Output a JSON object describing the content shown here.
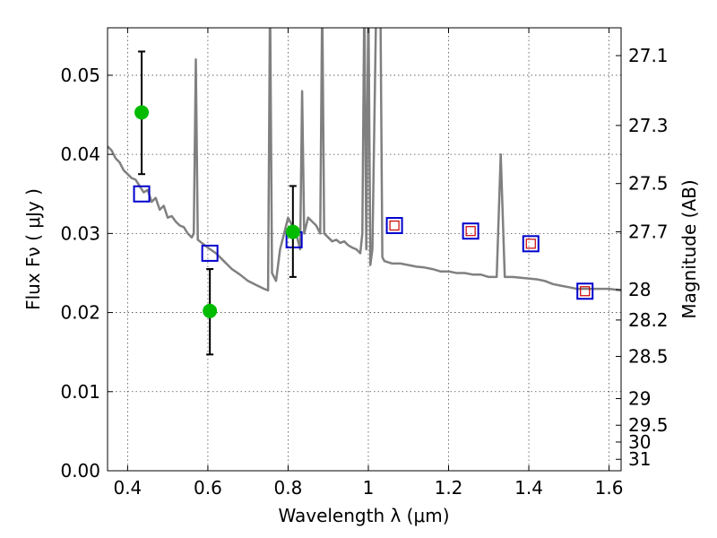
{
  "chart_data": {
    "type": "line",
    "xlabel": "Wavelength  λ (μm)",
    "ylabel": "Flux  Fν  ( μJy )",
    "ylabel_right": "Magnitude (AB)",
    "xlim": [
      0.35,
      1.63
    ],
    "ylim": [
      0.0,
      0.056
    ],
    "grid": true,
    "x_ticks": [
      {
        "value": 0.4,
        "label": "0.4"
      },
      {
        "value": 0.6,
        "label": "0.6"
      },
      {
        "value": 0.8,
        "label": "0.8"
      },
      {
        "value": 1.0,
        "label": "1"
      },
      {
        "value": 1.2,
        "label": "1.2"
      },
      {
        "value": 1.4,
        "label": "1.4"
      },
      {
        "value": 1.6,
        "label": "1.6"
      }
    ],
    "y_ticks": [
      {
        "value": 0.0,
        "label": "0.00"
      },
      {
        "value": 0.01,
        "label": "0.01"
      },
      {
        "value": 0.02,
        "label": "0.02"
      },
      {
        "value": 0.03,
        "label": "0.03"
      },
      {
        "value": 0.04,
        "label": "0.04"
      },
      {
        "value": 0.05,
        "label": "0.05"
      }
    ],
    "right_ticks": [
      {
        "mag": 27.1,
        "label": "27.1"
      },
      {
        "mag": 27.3,
        "label": "27.3"
      },
      {
        "mag": 27.5,
        "label": "27.5"
      },
      {
        "mag": 27.7,
        "label": "27.7"
      },
      {
        "mag": 28.0,
        "label": "28"
      },
      {
        "mag": 28.2,
        "label": "28.2"
      },
      {
        "mag": 28.5,
        "label": "28.5"
      },
      {
        "mag": 29.0,
        "label": "29"
      },
      {
        "mag": 29.5,
        "label": "29.5"
      },
      {
        "mag": 30.0,
        "label": "30"
      },
      {
        "mag": 31.0,
        "label": "31"
      }
    ],
    "series": [
      {
        "style": "line",
        "color": "#808080",
        "points": [
          [
            0.35,
            0.041
          ],
          [
            0.36,
            0.0405
          ],
          [
            0.37,
            0.0395
          ],
          [
            0.38,
            0.039
          ],
          [
            0.39,
            0.038
          ],
          [
            0.4,
            0.0375
          ],
          [
            0.41,
            0.037
          ],
          [
            0.42,
            0.0368
          ],
          [
            0.43,
            0.036
          ],
          [
            0.44,
            0.0352
          ],
          [
            0.45,
            0.0355
          ],
          [
            0.46,
            0.034
          ],
          [
            0.47,
            0.0345
          ],
          [
            0.48,
            0.033
          ],
          [
            0.49,
            0.0335
          ],
          [
            0.5,
            0.032
          ],
          [
            0.51,
            0.0322
          ],
          [
            0.52,
            0.0315
          ],
          [
            0.53,
            0.031
          ],
          [
            0.54,
            0.0308
          ],
          [
            0.55,
            0.03
          ],
          [
            0.56,
            0.0295
          ],
          [
            0.565,
            0.03
          ],
          [
            0.57,
            0.052
          ],
          [
            0.575,
            0.0292
          ],
          [
            0.58,
            0.029
          ],
          [
            0.6,
            0.0282
          ],
          [
            0.62,
            0.0275
          ],
          [
            0.64,
            0.0265
          ],
          [
            0.66,
            0.0255
          ],
          [
            0.68,
            0.0248
          ],
          [
            0.7,
            0.024
          ],
          [
            0.72,
            0.0235
          ],
          [
            0.74,
            0.023
          ],
          [
            0.75,
            0.0228
          ],
          [
            0.755,
            0.06
          ],
          [
            0.76,
            0.025
          ],
          [
            0.77,
            0.024
          ],
          [
            0.78,
            0.028
          ],
          [
            0.79,
            0.03
          ],
          [
            0.8,
            0.032
          ],
          [
            0.81,
            0.031
          ],
          [
            0.82,
            0.03
          ],
          [
            0.83,
            0.028
          ],
          [
            0.835,
            0.048
          ],
          [
            0.84,
            0.03
          ],
          [
            0.85,
            0.032
          ],
          [
            0.86,
            0.0315
          ],
          [
            0.87,
            0.031
          ],
          [
            0.88,
            0.03
          ],
          [
            0.885,
            0.06
          ],
          [
            0.89,
            0.03
          ],
          [
            0.9,
            0.0295
          ],
          [
            0.91,
            0.029
          ],
          [
            0.92,
            0.0292
          ],
          [
            0.93,
            0.0288
          ],
          [
            0.94,
            0.029
          ],
          [
            0.95,
            0.0285
          ],
          [
            0.96,
            0.0282
          ],
          [
            0.97,
            0.028
          ],
          [
            0.98,
            0.0275
          ],
          [
            0.985,
            0.03
          ],
          [
            0.99,
            0.06
          ],
          [
            0.995,
            0.028
          ],
          [
            1.0,
            0.06
          ],
          [
            1.005,
            0.026
          ],
          [
            1.01,
            0.028
          ],
          [
            1.02,
            0.06
          ],
          [
            1.03,
            0.06
          ],
          [
            1.035,
            0.027
          ],
          [
            1.04,
            0.0265
          ],
          [
            1.06,
            0.0262
          ],
          [
            1.08,
            0.0262
          ],
          [
            1.1,
            0.026
          ],
          [
            1.12,
            0.0258
          ],
          [
            1.14,
            0.0257
          ],
          [
            1.16,
            0.0255
          ],
          [
            1.18,
            0.0252
          ],
          [
            1.2,
            0.0252
          ],
          [
            1.22,
            0.025
          ],
          [
            1.24,
            0.025
          ],
          [
            1.26,
            0.0248
          ],
          [
            1.28,
            0.0248
          ],
          [
            1.3,
            0.0245
          ],
          [
            1.32,
            0.0245
          ],
          [
            1.33,
            0.04
          ],
          [
            1.34,
            0.0245
          ],
          [
            1.36,
            0.0245
          ],
          [
            1.38,
            0.0244
          ],
          [
            1.4,
            0.0243
          ],
          [
            1.42,
            0.0242
          ],
          [
            1.44,
            0.024
          ],
          [
            1.46,
            0.0236
          ],
          [
            1.48,
            0.0234
          ],
          [
            1.5,
            0.0232
          ],
          [
            1.52,
            0.023
          ],
          [
            1.54,
            0.023
          ],
          [
            1.56,
            0.023
          ],
          [
            1.58,
            0.023
          ],
          [
            1.6,
            0.023
          ],
          [
            1.63,
            0.0228
          ]
        ]
      },
      {
        "style": "blue-squares",
        "color": "#0000cc",
        "points": [
          [
            0.435,
            0.035
          ],
          [
            0.605,
            0.0275
          ],
          [
            0.815,
            0.0292
          ],
          [
            1.065,
            0.031
          ],
          [
            1.255,
            0.0303
          ],
          [
            1.405,
            0.0287
          ],
          [
            1.54,
            0.0227
          ]
        ]
      },
      {
        "style": "red-squares",
        "color": "#cc0000",
        "points": [
          [
            1.065,
            0.031
          ],
          [
            1.255,
            0.0303
          ],
          [
            1.405,
            0.0287
          ],
          [
            1.54,
            0.0227
          ]
        ]
      },
      {
        "style": "green-points-with-errors",
        "color": "#00bb00",
        "points": [
          {
            "x": 0.435,
            "y": 0.0453,
            "ylo": 0.0375,
            "yhi": 0.053
          },
          {
            "x": 0.605,
            "y": 0.0202,
            "ylo": 0.0147,
            "yhi": 0.0255
          },
          {
            "x": 0.812,
            "y": 0.0302,
            "ylo": 0.0245,
            "yhi": 0.036
          }
        ]
      }
    ]
  }
}
